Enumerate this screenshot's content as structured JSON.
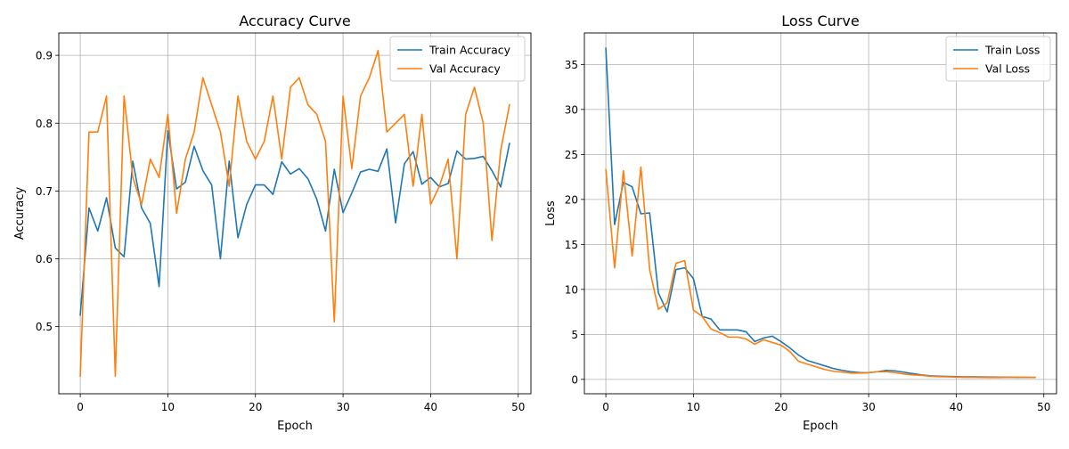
{
  "chart_data": [
    {
      "type": "line",
      "title": "Accuracy Curve",
      "xlabel": "Epoch",
      "ylabel": "Accuracy",
      "xlim": [
        -2.45,
        51.45
      ],
      "ylim": [
        0.401,
        0.933
      ],
      "xticks": [
        0,
        10,
        20,
        30,
        40,
        50
      ],
      "yticks": [
        0.5,
        0.6,
        0.7,
        0.8,
        0.9
      ],
      "ytick_labels": [
        "0.5",
        "0.6",
        "0.7",
        "0.8",
        "0.9"
      ],
      "grid": true,
      "legend": "upper right",
      "x": [
        0,
        1,
        2,
        3,
        4,
        5,
        6,
        7,
        8,
        9,
        10,
        11,
        12,
        13,
        14,
        15,
        16,
        17,
        18,
        19,
        20,
        21,
        22,
        23,
        24,
        25,
        26,
        27,
        28,
        29,
        30,
        31,
        32,
        33,
        34,
        35,
        36,
        37,
        38,
        39,
        40,
        41,
        42,
        43,
        44,
        45,
        46,
        47,
        48,
        49
      ],
      "series": [
        {
          "name": "Train Accuracy",
          "color": "#1f77b4",
          "values": [
            0.517,
            0.675,
            0.641,
            0.69,
            0.616,
            0.603,
            0.744,
            0.675,
            0.652,
            0.559,
            0.789,
            0.703,
            0.713,
            0.766,
            0.73,
            0.709,
            0.6,
            0.744,
            0.631,
            0.68,
            0.709,
            0.709,
            0.695,
            0.743,
            0.725,
            0.733,
            0.718,
            0.688,
            0.641,
            0.732,
            0.668,
            0.697,
            0.728,
            0.732,
            0.729,
            0.762,
            0.653,
            0.74,
            0.758,
            0.71,
            0.72,
            0.706,
            0.711,
            0.759,
            0.747,
            0.748,
            0.751,
            0.73,
            0.706,
            0.77
          ]
        },
        {
          "name": "Val Accuracy",
          "color": "#ff7f0e",
          "values": [
            0.427,
            0.787,
            0.787,
            0.84,
            0.427,
            0.84,
            0.72,
            0.68,
            0.747,
            0.72,
            0.813,
            0.667,
            0.747,
            0.787,
            0.867,
            0.827,
            0.787,
            0.707,
            0.84,
            0.773,
            0.747,
            0.773,
            0.84,
            0.747,
            0.853,
            0.867,
            0.827,
            0.813,
            0.773,
            0.507,
            0.84,
            0.733,
            0.84,
            0.867,
            0.907,
            0.787,
            0.8,
            0.813,
            0.707,
            0.813,
            0.68,
            0.707,
            0.747,
            0.6,
            0.813,
            0.853,
            0.8,
            0.627,
            0.76,
            0.827
          ]
        }
      ]
    },
    {
      "type": "line",
      "title": "Loss Curve",
      "xlabel": "Epoch",
      "ylabel": "Loss",
      "xlim": [
        -2.45,
        51.45
      ],
      "ylim": [
        -1.6,
        38.5
      ],
      "xticks": [
        0,
        10,
        20,
        30,
        40,
        50
      ],
      "yticks": [
        0,
        5,
        10,
        15,
        20,
        25,
        30,
        35
      ],
      "ytick_labels": [
        "0",
        "5",
        "10",
        "15",
        "20",
        "25",
        "30",
        "35"
      ],
      "grid": true,
      "legend": "upper right",
      "x": [
        0,
        1,
        2,
        3,
        4,
        5,
        6,
        7,
        8,
        9,
        10,
        11,
        12,
        13,
        14,
        15,
        16,
        17,
        18,
        19,
        20,
        21,
        22,
        23,
        24,
        25,
        26,
        27,
        28,
        29,
        30,
        31,
        32,
        33,
        34,
        35,
        36,
        37,
        38,
        39,
        40,
        41,
        42,
        43,
        44,
        45,
        46,
        47,
        48,
        49
      ],
      "series": [
        {
          "name": "Train Loss",
          "color": "#1f77b4",
          "values": [
            36.8,
            17.2,
            21.9,
            21.4,
            18.4,
            18.5,
            9.6,
            7.5,
            12.2,
            12.4,
            11.2,
            7.0,
            6.7,
            5.5,
            5.5,
            5.5,
            5.3,
            4.2,
            4.6,
            4.8,
            4.2,
            3.5,
            2.7,
            2.1,
            1.8,
            1.5,
            1.2,
            1.0,
            0.85,
            0.75,
            0.75,
            0.85,
            1.0,
            0.95,
            0.8,
            0.65,
            0.5,
            0.4,
            0.35,
            0.32,
            0.3,
            0.28,
            0.27,
            0.26,
            0.25,
            0.24,
            0.24,
            0.23,
            0.23,
            0.22
          ]
        },
        {
          "name": "Val Loss",
          "color": "#ff7f0e",
          "values": [
            23.3,
            12.4,
            23.2,
            13.7,
            23.6,
            12.2,
            7.8,
            8.5,
            12.9,
            13.2,
            7.7,
            7.0,
            5.6,
            5.2,
            4.7,
            4.7,
            4.5,
            3.9,
            4.4,
            4.1,
            3.8,
            3.1,
            2.0,
            1.7,
            1.4,
            1.1,
            0.9,
            0.8,
            0.7,
            0.7,
            0.75,
            0.85,
            0.85,
            0.75,
            0.6,
            0.5,
            0.45,
            0.35,
            0.3,
            0.28,
            0.25,
            0.23,
            0.22,
            0.21,
            0.2,
            0.2,
            0.22,
            0.25,
            0.22,
            0.22
          ]
        }
      ]
    }
  ]
}
